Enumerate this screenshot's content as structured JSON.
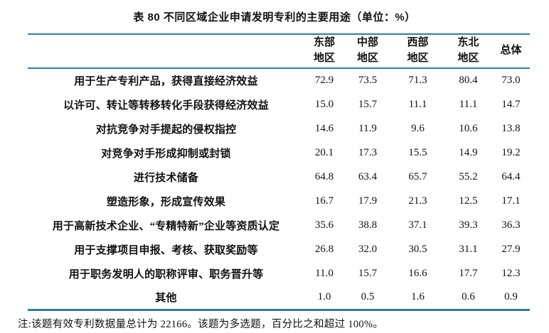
{
  "title": "表 80 不同区域企业申请发明专利的主要用途（单位：%）",
  "note": "注:该题有效专利数据量总计为 22166。该题为多选题，百分比之和超过 100%。",
  "colors": {
    "rule": "#2a7fa5",
    "text": "#111111"
  },
  "table": {
    "columns": [
      "东部地区",
      "中部地区",
      "西部地区",
      "东北地区",
      "总体"
    ],
    "rows": [
      {
        "label": "用于生产专利产品，获得直接经济效益",
        "values": [
          "72.9",
          "73.5",
          "71.3",
          "80.4",
          "73.0"
        ]
      },
      {
        "label": "以许可、转让等转移转化手段获得经济效益",
        "values": [
          "15.0",
          "15.7",
          "11.1",
          "11.1",
          "14.7"
        ]
      },
      {
        "label": "对抗竞争对手提起的侵权指控",
        "values": [
          "14.6",
          "11.9",
          "9.6",
          "10.6",
          "13.8"
        ]
      },
      {
        "label": "对竞争对手形成抑制或封锁",
        "values": [
          "20.1",
          "17.3",
          "15.5",
          "14.9",
          "19.2"
        ]
      },
      {
        "label": "进行技术储备",
        "values": [
          "64.8",
          "63.4",
          "65.7",
          "55.2",
          "64.4"
        ]
      },
      {
        "label": "塑造形象，形成宣传效果",
        "values": [
          "16.7",
          "17.9",
          "21.3",
          "12.5",
          "17.1"
        ]
      },
      {
        "label": "用于高新技术企业、“专精特新”企业等资质认定",
        "values": [
          "35.6",
          "38.8",
          "37.1",
          "39.3",
          "36.3"
        ]
      },
      {
        "label": "用于支撑项目申报、考核、获取奖励等",
        "values": [
          "26.8",
          "32.0",
          "30.5",
          "31.1",
          "27.9"
        ]
      },
      {
        "label": "用于职务发明人的职称评审、职务晋升等",
        "values": [
          "11.0",
          "15.7",
          "16.6",
          "17.7",
          "12.3"
        ]
      },
      {
        "label": "其他",
        "values": [
          "1.0",
          "0.5",
          "1.6",
          "0.6",
          "0.9"
        ]
      }
    ]
  }
}
